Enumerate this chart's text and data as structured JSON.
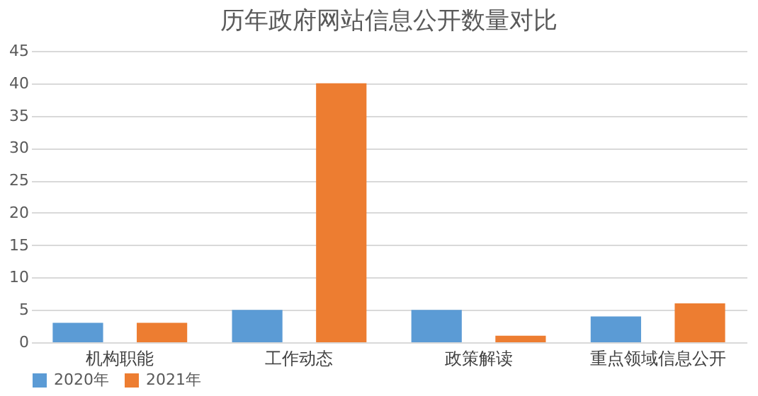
{
  "chart_data": {
    "type": "bar",
    "title": "历年政府网站信息公开数量对比",
    "categories": [
      "机构职能",
      "工作动态",
      "政策解读",
      "重点领域信息公开"
    ],
    "series": [
      {
        "name": "2020年",
        "color": "#5b9bd5",
        "values": [
          3,
          5,
          5,
          4
        ]
      },
      {
        "name": "2021年",
        "color": "#ed7d31",
        "values": [
          3,
          40,
          1,
          6
        ]
      }
    ],
    "ylim": [
      0,
      45
    ],
    "yticks": [
      0,
      5,
      10,
      15,
      20,
      25,
      30,
      35,
      40,
      45
    ],
    "grid": "y",
    "legend": "bottom"
  }
}
